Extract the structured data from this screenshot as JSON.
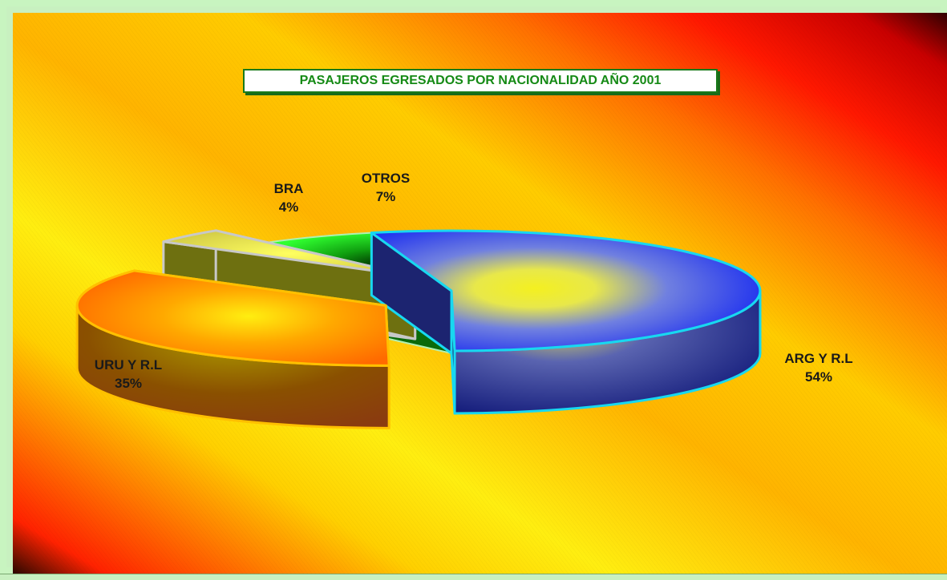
{
  "chart_data": {
    "type": "pie",
    "title": "PASAJEROS EGRESADOS POR NACIONALIDAD AÑO 2001",
    "categories": [
      "ARG Y R.L",
      "URU Y R.L",
      "BRA",
      "OTROS"
    ],
    "values": [
      54,
      35,
      4,
      7
    ],
    "value_labels": [
      "54%",
      "35%",
      "4%",
      "7%"
    ],
    "style": "3d-exploded",
    "legend": "none",
    "colors": {
      "ARG Y R.L": "#2a3cf0",
      "URU Y R.L": "#ff7a00",
      "BRA": "#9a9a30",
      "OTROS": "#18e018"
    }
  }
}
